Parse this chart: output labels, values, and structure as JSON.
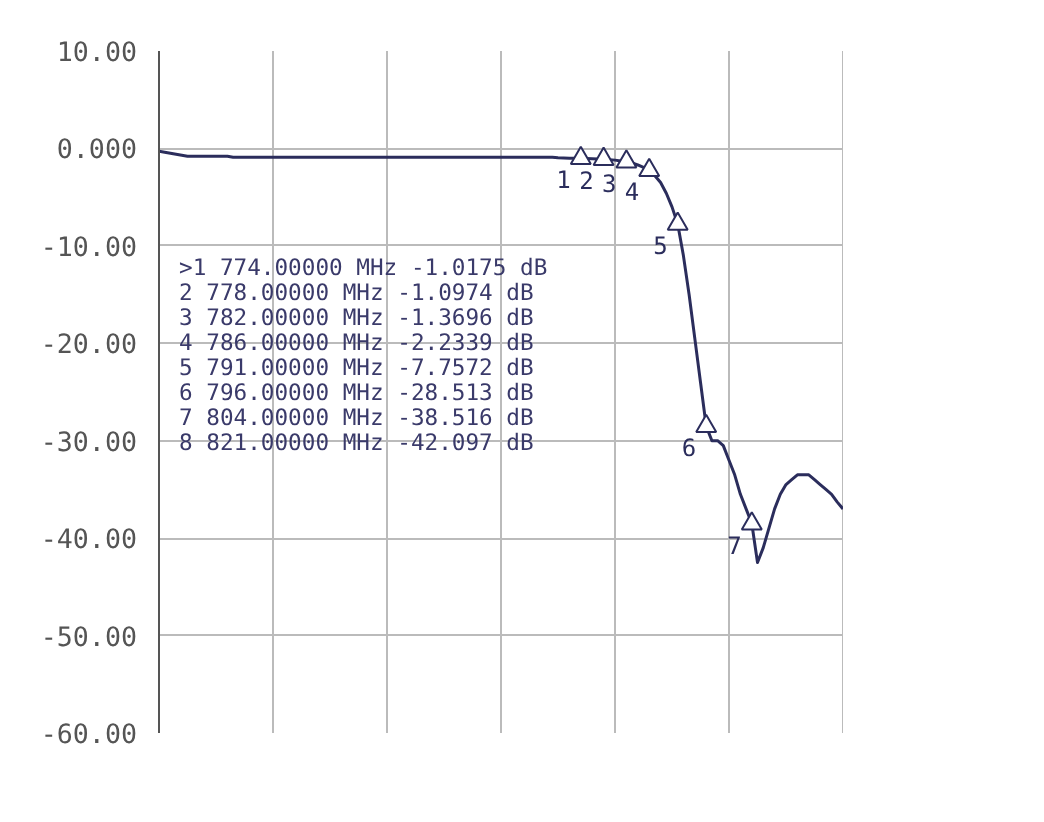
{
  "chart_data": {
    "type": "line",
    "ylim": [
      -60,
      10
    ],
    "categories": [
      null,
      null,
      null,
      null,
      null,
      null,
      null,
      null,
      null,
      null,
      null,
      null,
      null,
      null,
      null,
      null,
      null,
      null,
      null,
      null,
      null,
      null,
      null,
      null,
      null,
      null,
      null,
      null,
      null,
      null,
      null,
      null,
      null,
      null,
      null,
      null,
      null,
      null,
      null,
      null,
      null,
      null,
      null,
      null,
      null,
      null,
      null,
      null,
      null,
      null,
      null,
      null,
      null,
      null,
      null,
      null,
      null,
      null,
      null,
      null,
      null,
      null,
      null,
      null,
      null,
      null,
      null,
      null,
      null,
      null,
      null,
      null,
      null,
      null,
      null,
      null,
      null,
      null,
      null,
      null,
      null,
      null,
      null,
      null,
      null,
      null,
      null,
      null,
      null,
      null,
      null,
      null,
      null,
      null,
      null,
      null,
      null,
      null,
      null,
      null,
      null,
      null,
      null,
      null,
      null,
      null,
      null,
      null,
      null,
      null,
      null,
      null,
      null,
      null,
      null,
      null,
      null,
      null,
      null,
      null,
      null
    ],
    "yticks": [
      {
        "value": 10,
        "label": "10.00"
      },
      {
        "value": 0,
        "label": "0.000"
      },
      {
        "value": -10,
        "label": "-10.00"
      },
      {
        "value": -20,
        "label": "-20.00"
      },
      {
        "value": -30,
        "label": "-30.00"
      },
      {
        "value": -40,
        "label": "-40.00"
      },
      {
        "value": -50,
        "label": "-50.00"
      },
      {
        "value": -60,
        "label": "-60.00"
      }
    ],
    "grid": true,
    "series": [
      {
        "color": "#2b2d5c",
        "values": [
          -0.3,
          -0.4,
          -0.5,
          -0.6,
          -0.7,
          -0.8,
          -0.8,
          -0.8,
          -0.8,
          -0.8,
          -0.8,
          -0.8,
          -0.8,
          -0.9,
          -0.9,
          -0.9,
          -0.9,
          -0.9,
          -0.9,
          -0.9,
          -0.9,
          -0.9,
          -0.9,
          -0.9,
          -0.9,
          -0.9,
          -0.9,
          -0.9,
          -0.9,
          -0.9,
          -0.9,
          -0.9,
          -0.9,
          -0.9,
          -0.9,
          -0.9,
          -0.9,
          -0.9,
          -0.9,
          -0.9,
          -0.9,
          -0.9,
          -0.9,
          -0.9,
          -0.9,
          -0.9,
          -0.9,
          -0.9,
          -0.9,
          -0.9,
          -0.9,
          -0.9,
          -0.9,
          -0.9,
          -0.9,
          -0.9,
          -0.9,
          -0.9,
          -0.9,
          -0.9,
          -0.9,
          -0.9,
          -0.9,
          -0.9,
          -0.9,
          -0.9,
          -0.9,
          -0.9,
          -0.9,
          -0.9,
          -0.95,
          -0.97,
          -1.0,
          -1.0,
          -1.02,
          -1.04,
          -1.06,
          -1.08,
          -1.1,
          -1.15,
          -1.2,
          -1.28,
          -1.37,
          -1.5,
          -1.7,
          -1.95,
          -2.23,
          -2.8,
          -3.5,
          -4.6,
          -6,
          -7.76,
          -11,
          -15,
          -19.5,
          -24,
          -28.5,
          -30,
          -30,
          -30.5,
          -32,
          -33.5,
          -35.5,
          -37,
          -38.5,
          -42.5,
          -41,
          -39,
          -37,
          -35.5,
          -34.5,
          -34,
          -33.5,
          -33.5,
          -33.5,
          -34,
          -34.5,
          -35,
          -35.5,
          -36.3,
          -37
        ]
      },
      {
        "type": "scatter",
        "marker": "triangle",
        "color": "#2b2d5c",
        "values": [
          null,
          null,
          null,
          null,
          null,
          null,
          null,
          null,
          null,
          null,
          null,
          null,
          null,
          null,
          null,
          null,
          null,
          null,
          null,
          null,
          null,
          null,
          null,
          null,
          null,
          null,
          null,
          null,
          null,
          null,
          null,
          null,
          null,
          null,
          null,
          null,
          null,
          null,
          null,
          null,
          null,
          null,
          null,
          null,
          null,
          null,
          null,
          null,
          null,
          null,
          null,
          null,
          null,
          null,
          null,
          null,
          null,
          null,
          null,
          null,
          null,
          null,
          null,
          null,
          null,
          null,
          null,
          null,
          null,
          null,
          null,
          null,
          null,
          null,
          -1.0175,
          null,
          null,
          null,
          -1.0974,
          null,
          null,
          null,
          -1.3696,
          null,
          null,
          null,
          -2.2339,
          null,
          null,
          null,
          null,
          -7.7572,
          null,
          null,
          null,
          null,
          -28.513,
          null,
          null,
          null,
          null,
          null,
          null,
          null,
          -38.516,
          null,
          null,
          null,
          null,
          null,
          null,
          null,
          null,
          null,
          null,
          null,
          null,
          null,
          null,
          null,
          null
        ]
      }
    ],
    "annotations": [
      {
        "text": "1",
        "y": -1.0175
      },
      {
        "text": "2",
        "y": -1.0974
      },
      {
        "text": "3",
        "y": -1.3696
      },
      {
        "text": "4",
        "y": -2.2339
      },
      {
        "text": "5",
        "y": -7.7572
      },
      {
        "text": "6",
        "y": -28.513
      },
      {
        "text": "7",
        "y": -38.516
      },
      ">1   774.00000 MHz -1.0175 dB",
      " 2   778.00000 MHz -1.0974 dB",
      " 3   782.00000 MHz -1.3696 dB",
      " 4   786.00000 MHz -2.2339 dB",
      " 5   791.00000 MHz -7.7572 dB",
      " 6   796.00000 MHz -28.513 dB",
      " 7   804.00000 MHz -38.516 dB",
      " 8   821.00000 MHz -42.097 dB"
    ]
  }
}
